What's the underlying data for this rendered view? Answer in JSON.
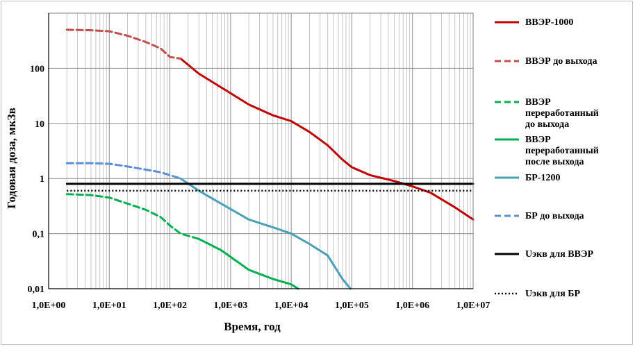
{
  "chart_data": {
    "type": "line",
    "title": "",
    "xlabel": "Время, год",
    "ylabel": "Годовая доза, мкЗв",
    "x_scale": "log",
    "y_scale": "log",
    "xlim": [
      1,
      10000000
    ],
    "ylim": [
      0.01,
      1000
    ],
    "grid": true,
    "legend_position": "right",
    "x_tick_labels": [
      "1,0E+00",
      "1,0E+01",
      "1,0E+02",
      "1,0E+03",
      "1,0E+04",
      "1,0E+05",
      "1,0E+06",
      "1,0E+07"
    ],
    "y_tick_labels": [
      "0,01",
      "0,1",
      "1",
      "10",
      "100"
    ],
    "series": [
      {
        "name": "ВВЭР-1000",
        "color": "#c00000",
        "style": "solid",
        "x": [
          150,
          300,
          700,
          2000,
          5000,
          10000,
          20000,
          40000,
          70000,
          100000,
          200000,
          500000,
          1000000,
          2000000,
          5000000,
          10000000
        ],
        "y": [
          150,
          80,
          45,
          22,
          14,
          11,
          7,
          4,
          2.2,
          1.6,
          1.15,
          0.9,
          0.72,
          0.55,
          0.3,
          0.18
        ]
      },
      {
        "name": "ВВЭР до выхода",
        "color": "#c0504d",
        "style": "dashed",
        "x": [
          2,
          5,
          10,
          20,
          40,
          70,
          100,
          150
        ],
        "y": [
          500,
          490,
          470,
          390,
          300,
          230,
          160,
          150
        ]
      },
      {
        "name": "ВВЭР переработанный до выхода",
        "color": "#00b050",
        "style": "dashed",
        "x": [
          2,
          5,
          10,
          20,
          40,
          70,
          100,
          150,
          300
        ],
        "y": [
          0.52,
          0.5,
          0.45,
          0.35,
          0.27,
          0.2,
          0.14,
          0.1,
          0.08
        ]
      },
      {
        "name": "ВВЭР переработанный после выхода",
        "color": "#00b050",
        "style": "solid",
        "x": [
          300,
          700,
          2000,
          5000,
          10000,
          13000
        ],
        "y": [
          0.08,
          0.05,
          0.022,
          0.015,
          0.012,
          0.01
        ]
      },
      {
        "name": "БР-1200",
        "color": "#4aa0b5",
        "style": "solid",
        "x": [
          150,
          300,
          700,
          2000,
          5000,
          10000,
          20000,
          40000,
          70000,
          95000
        ],
        "y": [
          1.0,
          0.6,
          0.35,
          0.18,
          0.13,
          0.1,
          0.065,
          0.04,
          0.015,
          0.01
        ]
      },
      {
        "name": "БР до выхода",
        "color": "#5b8fd6",
        "style": "dashed",
        "x": [
          2,
          5,
          10,
          20,
          40,
          70,
          100,
          150
        ],
        "y": [
          1.9,
          1.9,
          1.85,
          1.65,
          1.45,
          1.3,
          1.15,
          1.0
        ]
      },
      {
        "name": "Uэкв для ВВЭР",
        "color": "#000000",
        "style": "solid",
        "x": [
          2,
          10000000
        ],
        "y": [
          0.8,
          0.8
        ]
      },
      {
        "name": "Uэкв для БР",
        "color": "#000000",
        "style": "dotted",
        "x": [
          2,
          10000000
        ],
        "y": [
          0.6,
          0.6
        ]
      }
    ]
  },
  "legend": [
    {
      "lines": [
        "ВВЭР-1000"
      ],
      "color": "#c00000",
      "style": "solid"
    },
    {
      "lines": [
        "ВВЭР до выхода"
      ],
      "color": "#c0504d",
      "style": "dashed"
    },
    {
      "lines": [
        "ВВЭР",
        "переработанный",
        "до выхода"
      ],
      "color": "#00b050",
      "style": "dashed"
    },
    {
      "lines": [
        "ВВЭР",
        "переработанный",
        "после выхода"
      ],
      "color": "#00b050",
      "style": "solid"
    },
    {
      "lines": [
        "БР-1200"
      ],
      "color": "#4aa0b5",
      "style": "solid"
    },
    {
      "lines": [
        "БР до выхода"
      ],
      "color": "#5b8fd6",
      "style": "dashed"
    },
    {
      "lines": [
        "Uэкв для ВВЭР"
      ],
      "color": "#000000",
      "style": "solid"
    },
    {
      "lines": [
        "Uэкв для БР"
      ],
      "color": "#000000",
      "style": "dotted"
    }
  ]
}
